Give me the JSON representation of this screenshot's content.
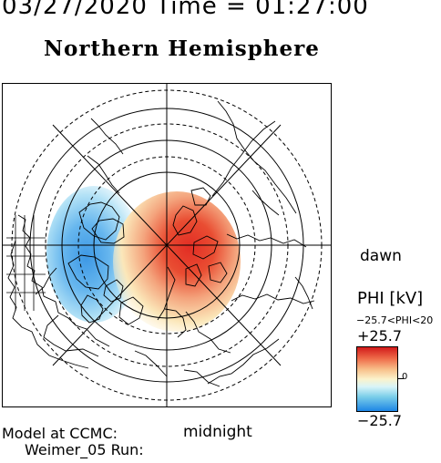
{
  "header": {
    "time_text": "03/27/2020 Time = 01:27:00",
    "title": "Northern Hemisphere"
  },
  "map": {
    "orientation_labels": {
      "right": "dawn",
      "bottom": "midnight"
    }
  },
  "legend": {
    "label": "PHI [kV]",
    "range_text": "−25.7<PHI<20",
    "max_label": "+25.7",
    "zero_label": "0",
    "min_label": "−25.7",
    "colors": {
      "positive": "#d21a1a",
      "neutral": "#fbf3cc",
      "negative": "#1d86e5"
    }
  },
  "footer": {
    "model_line": "Model at CCMC:",
    "run_line": "Weimer_05 Run:"
  }
}
